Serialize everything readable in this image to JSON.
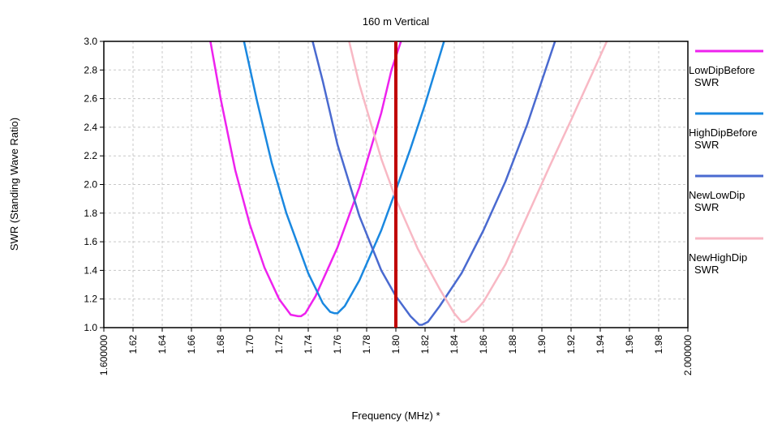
{
  "chart_data": {
    "type": "line",
    "title": "160 m Vertical",
    "xlabel": "Frequency (MHz) *",
    "ylabel": "SWR  (Standing Wave Ratio)",
    "xlim": [
      1.6,
      2.0
    ],
    "ylim": [
      1.0,
      3.0
    ],
    "x_ticks": [
      "1.600000",
      "1.62",
      "1.64",
      "1.66",
      "1.68",
      "1.70",
      "1.72",
      "1.74",
      "1.76",
      "1.78",
      "1.80",
      "1.82",
      "1.84",
      "1.86",
      "1.88",
      "1.90",
      "1.92",
      "1.94",
      "1.96",
      "1.98",
      "2.000000"
    ],
    "y_ticks": [
      "1.0",
      "1.2",
      "1.4",
      "1.6",
      "1.8",
      "2.0",
      "2.2",
      "2.4",
      "2.6",
      "2.8",
      "3.0"
    ],
    "grid": true,
    "legend_position": "right",
    "marker_line": {
      "x": 1.8,
      "color": "#c00000"
    },
    "series": [
      {
        "name": "LowDipBefore",
        "legend_label": [
          "LowDipBefore",
          "SWR"
        ],
        "color": "#ee22ee",
        "x": [
          1.673,
          1.68,
          1.69,
          1.7,
          1.71,
          1.72,
          1.728,
          1.733,
          1.735,
          1.738,
          1.745,
          1.76,
          1.775,
          1.79,
          1.797,
          1.8035
        ],
        "y": [
          3.0,
          2.6,
          2.1,
          1.72,
          1.42,
          1.2,
          1.09,
          1.08,
          1.08,
          1.1,
          1.22,
          1.56,
          1.98,
          2.5,
          2.8,
          3.0
        ]
      },
      {
        "name": "HighDipBefore",
        "legend_label": [
          "HighDipBefore",
          "SWR"
        ],
        "color": "#1a88e0",
        "x": [
          1.696,
          1.705,
          1.715,
          1.725,
          1.74,
          1.75,
          1.755,
          1.758,
          1.76,
          1.765,
          1.775,
          1.79,
          1.8,
          1.81,
          1.82,
          1.833
        ],
        "y": [
          3.0,
          2.58,
          2.15,
          1.8,
          1.38,
          1.17,
          1.11,
          1.1,
          1.1,
          1.15,
          1.33,
          1.68,
          1.96,
          2.25,
          2.56,
          3.0
        ]
      },
      {
        "name": "NewLowDip",
        "legend_label": [
          "NewLowDip",
          "SWR"
        ],
        "color": "#4a6ad0",
        "x": [
          1.743,
          1.75,
          1.76,
          1.775,
          1.79,
          1.8,
          1.81,
          1.816,
          1.818,
          1.822,
          1.83,
          1.845,
          1.86,
          1.875,
          1.89,
          1.909
        ],
        "y": [
          3.0,
          2.72,
          2.28,
          1.78,
          1.4,
          1.22,
          1.08,
          1.02,
          1.02,
          1.04,
          1.15,
          1.38,
          1.68,
          2.02,
          2.42,
          3.0
        ]
      },
      {
        "name": "NewHighDip",
        "legend_label": [
          "NewHighDip",
          "SWR"
        ],
        "color": "#f8b8c4",
        "x": [
          1.768,
          1.775,
          1.79,
          1.8,
          1.815,
          1.83,
          1.84,
          1.845,
          1.847,
          1.85,
          1.86,
          1.875,
          1.89,
          1.905,
          1.92,
          1.9445
        ],
        "y": [
          3.0,
          2.7,
          2.18,
          1.9,
          1.55,
          1.27,
          1.1,
          1.04,
          1.04,
          1.06,
          1.18,
          1.44,
          1.78,
          2.12,
          2.45,
          3.0
        ]
      }
    ]
  }
}
